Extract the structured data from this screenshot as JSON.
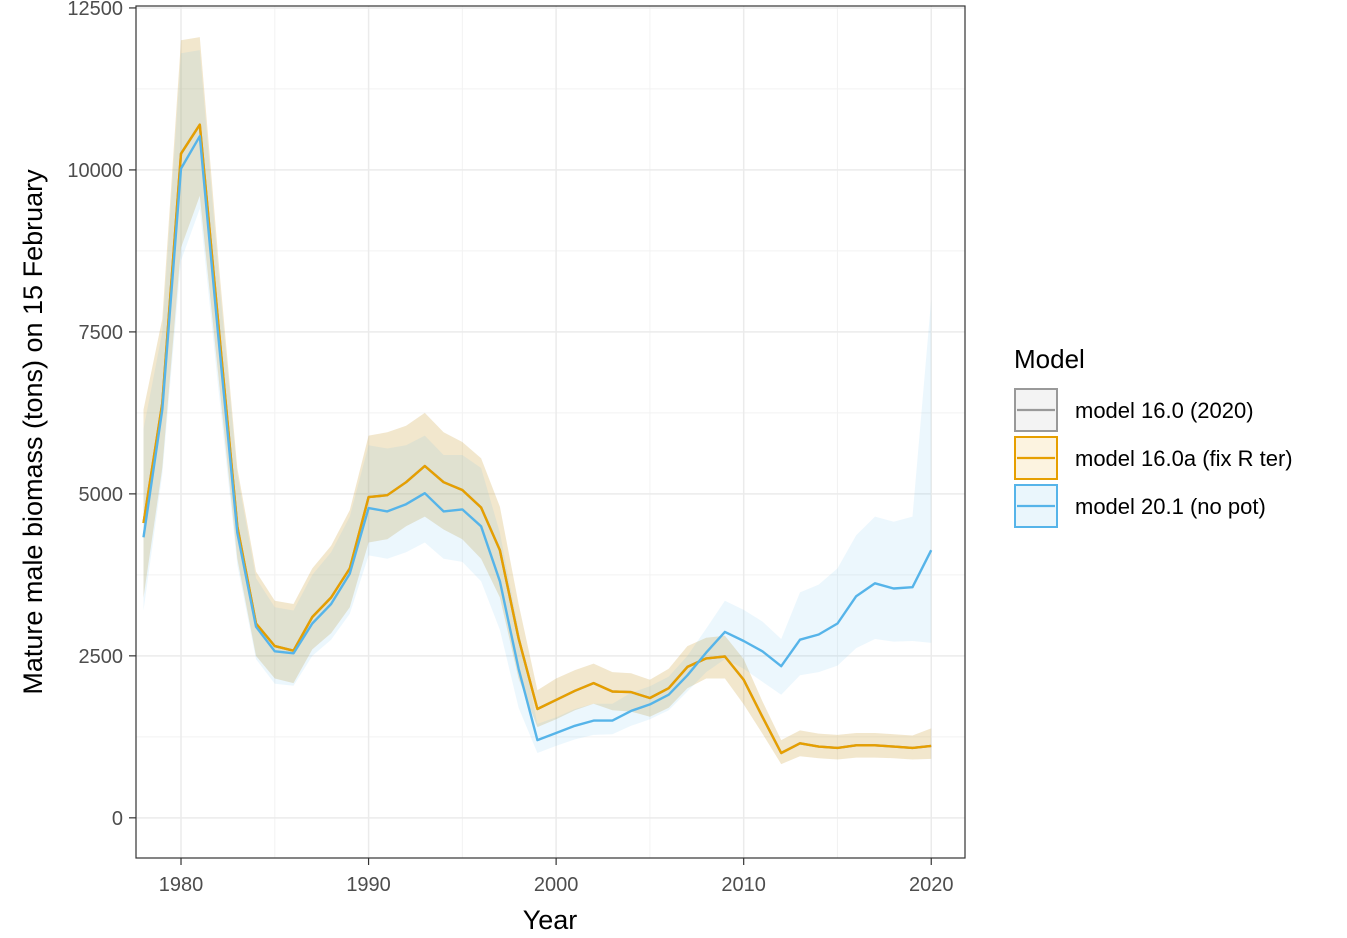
{
  "chart_data": {
    "type": "line",
    "xlabel": "Year",
    "ylabel": "Mature male biomass (tons) on 15 February",
    "xlim": [
      1977.6,
      2021.8
    ],
    "ylim": [
      -620,
      12530
    ],
    "x_ticks": [
      1980,
      1990,
      2000,
      2010,
      2020
    ],
    "y_ticks": [
      0,
      2500,
      5000,
      7500,
      10000,
      12500
    ],
    "x_tick_labels": [
      "1980",
      "1990",
      "2000",
      "2010",
      "2020"
    ],
    "y_tick_labels": [
      "0",
      "2500",
      "5000",
      "7500",
      "10000",
      "12500"
    ],
    "grid": true,
    "legend": {
      "title": "Model",
      "position": "right"
    },
    "series": [
      {
        "name": "model 16.0 (2020)",
        "color": "#999999",
        "x": [
          1978,
          1979,
          1980,
          1981,
          1982,
          1983,
          1984,
          1985,
          1986,
          1987,
          1988,
          1989,
          1990,
          1991,
          1992,
          1993,
          1994,
          1995,
          1996,
          1997,
          1998,
          1999,
          2000,
          2001,
          2002,
          2003,
          2004,
          2005,
          2006,
          2007,
          2008,
          2009,
          2010,
          2011,
          2012,
          2013,
          2014,
          2015,
          2016,
          2017,
          2018,
          2019,
          2020
        ],
        "values": [
          4550,
          6400,
          10250,
          10700,
          7600,
          4500,
          3000,
          2650,
          2580,
          3100,
          3400,
          3850,
          4950,
          4980,
          5180,
          5430,
          5180,
          5060,
          4790,
          4130,
          2770,
          1680,
          1820,
          1960,
          2080,
          1950,
          1940,
          1850,
          2000,
          2330,
          2460,
          2490,
          2130,
          1560,
          1000,
          1150,
          1100,
          1080,
          1120,
          1120,
          1100,
          1080,
          1110
        ],
        "lower": [
          3400,
          5400,
          8800,
          9600,
          6800,
          4000,
          2500,
          2150,
          2080,
          2600,
          2850,
          3250,
          4250,
          4300,
          4500,
          4650,
          4450,
          4300,
          4000,
          3400,
          2150,
          1400,
          1520,
          1660,
          1760,
          1660,
          1640,
          1560,
          1700,
          2000,
          2150,
          2150,
          1750,
          1300,
          830,
          950,
          920,
          900,
          930,
          930,
          920,
          900,
          910
        ],
        "upper": [
          6300,
          7700,
          12000,
          12050,
          8600,
          5400,
          3800,
          3350,
          3300,
          3850,
          4200,
          4750,
          5900,
          5950,
          6050,
          6250,
          5950,
          5800,
          5550,
          4800,
          3300,
          1970,
          2150,
          2280,
          2380,
          2250,
          2230,
          2130,
          2300,
          2650,
          2780,
          2810,
          2450,
          1800,
          1200,
          1350,
          1300,
          1280,
          1310,
          1310,
          1290,
          1270,
          1380
        ]
      },
      {
        "name": "model 16.0a (fix R ter)",
        "color": "#E69F00",
        "x": [
          1978,
          1979,
          1980,
          1981,
          1982,
          1983,
          1984,
          1985,
          1986,
          1987,
          1988,
          1989,
          1990,
          1991,
          1992,
          1993,
          1994,
          1995,
          1996,
          1997,
          1998,
          1999,
          2000,
          2001,
          2002,
          2003,
          2004,
          2005,
          2006,
          2007,
          2008,
          2009,
          2010,
          2011,
          2012,
          2013,
          2014,
          2015,
          2016,
          2017,
          2018,
          2019,
          2020
        ],
        "values": [
          4550,
          6400,
          10250,
          10700,
          7600,
          4500,
          3000,
          2650,
          2580,
          3100,
          3400,
          3850,
          4950,
          4980,
          5180,
          5430,
          5180,
          5060,
          4790,
          4130,
          2770,
          1680,
          1820,
          1960,
          2080,
          1950,
          1940,
          1850,
          2000,
          2330,
          2460,
          2490,
          2130,
          1560,
          1000,
          1150,
          1100,
          1080,
          1120,
          1120,
          1100,
          1080,
          1110
        ],
        "lower": [
          3400,
          5400,
          8800,
          9600,
          6800,
          4000,
          2500,
          2150,
          2080,
          2600,
          2850,
          3250,
          4250,
          4300,
          4500,
          4650,
          4450,
          4300,
          4000,
          3400,
          2150,
          1400,
          1520,
          1660,
          1760,
          1660,
          1640,
          1560,
          1700,
          2000,
          2150,
          2150,
          1750,
          1300,
          830,
          950,
          920,
          900,
          930,
          930,
          920,
          900,
          910
        ],
        "upper": [
          6300,
          7700,
          12000,
          12050,
          8600,
          5400,
          3800,
          3350,
          3300,
          3850,
          4200,
          4750,
          5900,
          5950,
          6050,
          6250,
          5950,
          5800,
          5550,
          4800,
          3300,
          1970,
          2150,
          2280,
          2380,
          2250,
          2230,
          2130,
          2300,
          2650,
          2780,
          2810,
          2450,
          1800,
          1200,
          1350,
          1300,
          1280,
          1310,
          1310,
          1290,
          1270,
          1380
        ]
      },
      {
        "name": "model 20.1 (no pot)",
        "color": "#56B4E9",
        "x": [
          1978,
          1979,
          1980,
          1981,
          1982,
          1983,
          1984,
          1985,
          1986,
          1987,
          1988,
          1989,
          1990,
          1991,
          1992,
          1993,
          1994,
          1995,
          1996,
          1997,
          1998,
          1999,
          2000,
          2001,
          2002,
          2003,
          2004,
          2005,
          2006,
          2007,
          2008,
          2009,
          2010,
          2011,
          2012,
          2013,
          2014,
          2015,
          2016,
          2017,
          2018,
          2019,
          2020
        ],
        "values": [
          4330,
          6300,
          10020,
          10520,
          7400,
          4400,
          2950,
          2570,
          2540,
          3000,
          3300,
          3770,
          4780,
          4730,
          4840,
          5010,
          4730,
          4760,
          4500,
          3650,
          2300,
          1200,
          1310,
          1420,
          1500,
          1500,
          1650,
          1750,
          1900,
          2200,
          2550,
          2870,
          2730,
          2570,
          2340,
          2750,
          2830,
          3000,
          3420,
          3620,
          3540,
          3560,
          4130
        ],
        "lower": [
          3200,
          5300,
          8600,
          9400,
          6600,
          3900,
          2450,
          2070,
          2040,
          2500,
          2750,
          3150,
          4050,
          4000,
          4100,
          4250,
          4000,
          3950,
          3650,
          2900,
          1700,
          1000,
          1110,
          1210,
          1280,
          1290,
          1420,
          1520,
          1660,
          1950,
          2250,
          2450,
          2300,
          2100,
          1900,
          2200,
          2250,
          2350,
          2620,
          2760,
          2720,
          2730,
          2700
        ],
        "upper": [
          6000,
          7500,
          11800,
          11850,
          8400,
          5300,
          3700,
          3250,
          3200,
          3750,
          4100,
          4650,
          5750,
          5700,
          5750,
          5900,
          5600,
          5600,
          5400,
          4400,
          2900,
          1450,
          1550,
          1680,
          1760,
          1760,
          1930,
          2030,
          2180,
          2500,
          2920,
          3350,
          3210,
          3030,
          2760,
          3480,
          3600,
          3850,
          4360,
          4650,
          4570,
          4650,
          8000
        ]
      }
    ]
  }
}
